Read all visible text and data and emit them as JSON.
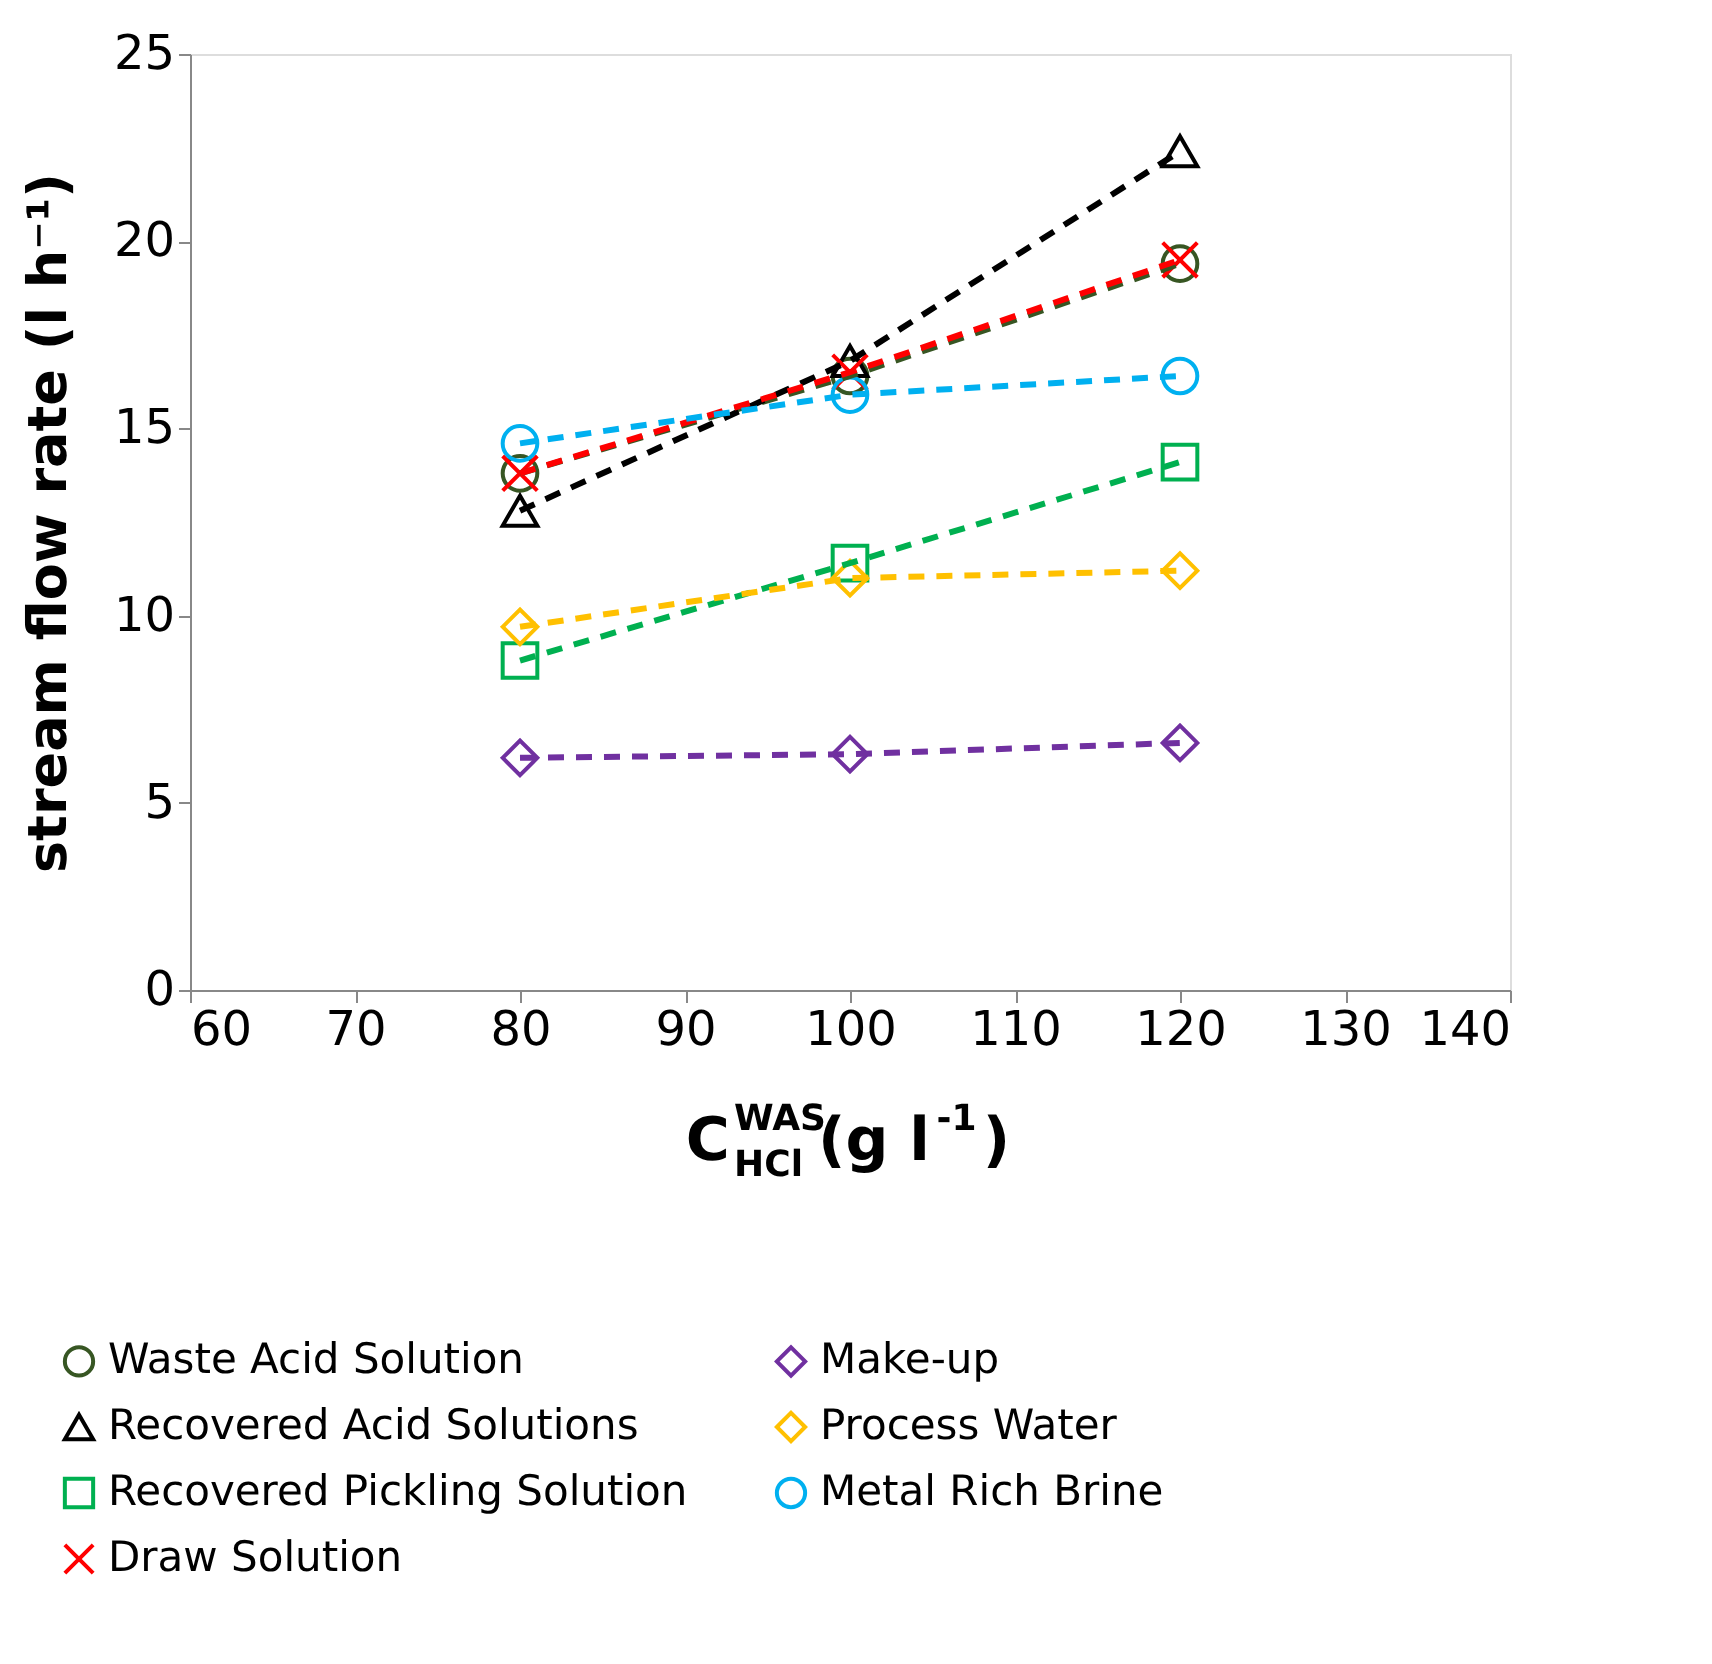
{
  "chart_data": {
    "type": "line",
    "xlabel": "C$^{WAS}$$_{HCl}$(g l$^{-1}$)",
    "ylabel": "stream flow rate (l h⁻¹)",
    "x": [
      80,
      100,
      120
    ],
    "xlim": [
      60,
      140
    ],
    "xticks": [
      60,
      70,
      80,
      90,
      100,
      110,
      120,
      130,
      140
    ],
    "ylim": [
      0,
      25
    ],
    "yticks": [
      0,
      5,
      10,
      15,
      20,
      25
    ],
    "grid": false,
    "legend": "bottom",
    "line_style": "dashed",
    "series": [
      {
        "name": "Waste Acid Solution",
        "color": "#375623",
        "marker": "circle",
        "values": [
          13.8,
          16.4,
          19.4
        ]
      },
      {
        "name": "Recovered Acid Solutions",
        "color": "#000000",
        "marker": "triangle",
        "values": [
          12.8,
          16.8,
          22.4
        ]
      },
      {
        "name": "Recovered Pickling Solution",
        "color": "#00b050",
        "marker": "square",
        "values": [
          8.8,
          11.4,
          14.1
        ]
      },
      {
        "name": "Draw Solution",
        "color": "#ff0000",
        "marker": "cross",
        "values": [
          13.8,
          16.5,
          19.5
        ]
      },
      {
        "name": "Make-up",
        "color": "#7030a0",
        "marker": "diamond",
        "values": [
          6.2,
          6.3,
          6.6
        ]
      },
      {
        "name": "Process Water",
        "color": "#ffc000",
        "marker": "diamond",
        "values": [
          9.7,
          11.0,
          11.2
        ]
      },
      {
        "name": "Metal Rich Brine",
        "color": "#00b0f0",
        "marker": "circle",
        "values": [
          14.6,
          15.9,
          16.4
        ]
      }
    ]
  }
}
